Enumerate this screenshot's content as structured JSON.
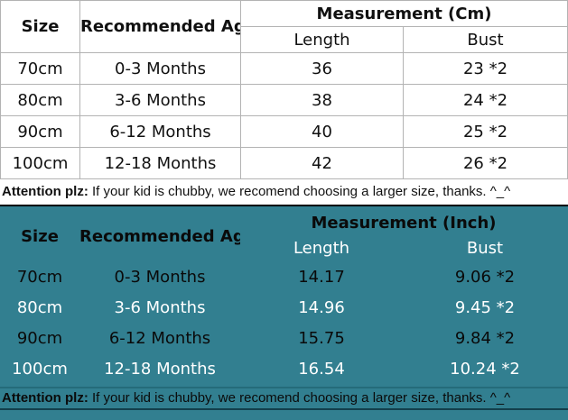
{
  "colors": {
    "teal_background": "#327F90",
    "grid_line": "#B3B3B3",
    "black_divider": "#000000",
    "teal_line_top": "#256B7A",
    "teal_line_bottom": "#123F4C",
    "alt_row_text": "#FFFFFF",
    "main_text": "#111111"
  },
  "cm_table": {
    "headers": {
      "size": "Size",
      "age": "Recommended Age",
      "measurement": "Measurement (Cm)",
      "length": "Length",
      "bust": "Bust"
    },
    "rows": [
      {
        "size": "70cm",
        "age": "0-3 Months",
        "length": "36",
        "bust": "23 *2"
      },
      {
        "size": "80cm",
        "age": "3-6 Months",
        "length": "38",
        "bust": "24 *2"
      },
      {
        "size": "90cm",
        "age": "6-12 Months",
        "length": "40",
        "bust": "25 *2"
      },
      {
        "size": "100cm",
        "age": "12-18 Months",
        "length": "42",
        "bust": "26 *2"
      }
    ],
    "note": {
      "label": "Attention plz:",
      "text": " If your kid is chubby, we recomend choosing a larger size, thanks. ^_^"
    }
  },
  "inch_table": {
    "headers": {
      "size": "Size",
      "age": "Recommended Age",
      "measurement": "Measurement (Inch)",
      "length": "Length",
      "bust": "Bust"
    },
    "rows": [
      {
        "size": "70cm",
        "age": "0-3 Months",
        "length": "14.17",
        "bust": "9.06 *2"
      },
      {
        "size": "80cm",
        "age": "3-6 Months",
        "length": "14.96",
        "bust": "9.45 *2"
      },
      {
        "size": "90cm",
        "age": "6-12 Months",
        "length": "15.75",
        "bust": "9.84 *2"
      },
      {
        "size": "100cm",
        "age": "12-18 Months",
        "length": "16.54",
        "bust": "10.24 *2"
      }
    ],
    "note": {
      "label": "Attention plz:",
      "text": " If your kid is chubby, we recomend choosing a larger size, thanks. ^_^"
    }
  }
}
